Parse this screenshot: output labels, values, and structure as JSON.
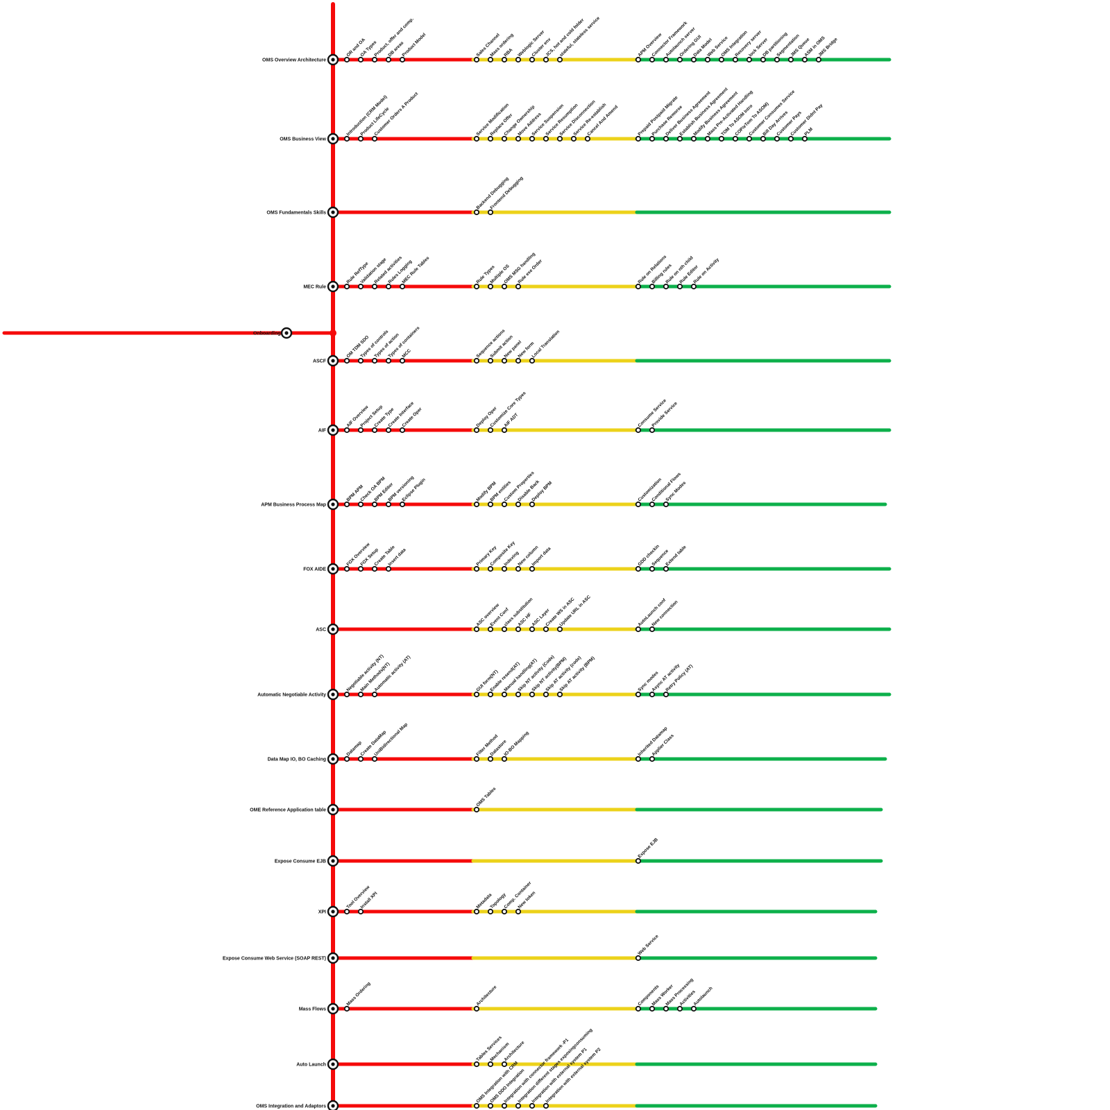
{
  "palette": {
    "red": "#f50a0a",
    "yellow": "#ecd21a",
    "green": "#0db04b",
    "station_stroke": "#111111",
    "station_fill": "#ffffff"
  },
  "onboarding": {
    "label": "Onboarding"
  },
  "rows": [
    {
      "label": "OMS Overview  Architecture",
      "red": [
        "OR and OA",
        "OA Types",
        "Product, offer and comp.",
        "DB areas",
        "Product Model"
      ],
      "yellow": [
        "Sales Channel",
        "Mass ordering",
        "RBA",
        "Weblogic Server",
        "Cluster env",
        "JCS, hot and cold folder",
        "stateful, stateless service"
      ],
      "green": [
        "APM Overview",
        "Connector Framework",
        "Autolaunch server",
        "Ordering GUI",
        "Data Model",
        "Web Service",
        "OMS Integration",
        "Recovery server",
        "lock Server",
        "DB partitioning",
        "Segmentation",
        "JMS Queue",
        "ASM in OMS",
        "JMS Bridge"
      ]
    },
    {
      "label": "OMS Business View",
      "red": [
        "Introduction (CRM Model)",
        "Product LifeCycle",
        "Customer Orders A Product"
      ],
      "yellow": [
        "Service Modification",
        "Replace Offer",
        "Change Ownership",
        "Move Address",
        "Service Suspension",
        "Service Resumption",
        "Service Disconnection",
        "Service Re-establish",
        "Cancel And Amend"
      ],
      "green": [
        "Prepaid Postpaid Migrate",
        "Purchase Remorse",
        "Deliver Business Agreement",
        "Establish Business Agreement",
        "Modify Business Agreement",
        "Mass Pre-Activated  Handling",
        "TOM To ASOM Intro",
        "COP/eTom To ASOM)",
        "Customer Consumes Service",
        "Bill Day Arrives",
        "Customer Pays",
        "Customer Didnt Pay",
        "PLM"
      ]
    },
    {
      "label": "OMS Fundamentals Skills",
      "red": [],
      "yellow": [
        "Backend Debugging",
        "Frontend Debugging"
      ],
      "green": []
    },
    {
      "label": "MEC Rule",
      "red": [
        "Rule RefType",
        "Validation stage",
        "Related activities",
        "Rules Logging",
        "MEC Rule Tables"
      ],
      "yellow": [
        "Rule Types",
        "Multiple OS",
        "OMS MSG handling",
        "Rule exe Order"
      ],
      "green": [
        "Rule on Relations",
        "Billing rules",
        "Rule on nth child",
        "Rule Editor",
        "Rule on Activity"
      ]
    },
    {
      "label": "ASCF",
      "red": [
        "OM TDM SDO",
        "Types of controls",
        "Types of action",
        "Types of containers",
        "MCC"
      ],
      "yellow": [
        "Sequence actions",
        "Submit action",
        "New panel",
        "New form",
        "Local Translation"
      ],
      "green": []
    },
    {
      "label": "AIF",
      "red": [
        "AIF Overview",
        "Project Setup",
        "Create Type",
        "Create Interface",
        "Create Oper"
      ],
      "yellow": [
        "Deploy Oper",
        "Customize Core Types",
        "AIF ADT"
      ],
      "green": [
        "Consume Service",
        "Provide Service"
      ]
    },
    {
      "label": "APM  Business Process Map",
      "red": [
        "BPM  APM",
        "Check OA BPM",
        "BPM Editor",
        "BPM versioning",
        "Eclipse Plugin"
      ],
      "yellow": [
        "Modify BPM",
        "BPM entities",
        "Custom Properties",
        "Disable Back",
        "Deploy BPM"
      ],
      "green": [
        "Customization",
        "Conditional Flows",
        "Sync Modes"
      ]
    },
    {
      "label": "FOX AIDE",
      "red": [
        "FOX Overview",
        "FOX Setup",
        "Create Table",
        "Insert data"
      ],
      "yellow": [
        "Primary Key",
        "Composite Key",
        "Indexing",
        "New column",
        "Import data"
      ],
      "green": [
        "GDD checkin",
        "Sequence",
        "Extend table"
      ]
    },
    {
      "label": "ASC",
      "red": [],
      "yellow": [
        "ASC overview",
        "Event Conf",
        "class substitution",
        "ASC HF",
        "ASC Layer",
        "Create WS in ASC",
        "Update URL in ASC"
      ],
      "green": [
        "AutoLaunch conf",
        "New connection"
      ]
    },
    {
      "label": "Automatic  Negotiable Activity",
      "red": [
        "Negotiable activity (NT)",
        "Main Methods(NT)",
        "Automatic activity (AT)"
      ],
      "yellow": [
        "GUI form(NT)",
        "Enable resend(AT)",
        "Manual handling(AT)",
        "Skip NT activity (Code)",
        "Skip NT activity(BPM)",
        "Skip AT activity (code)",
        "Skip AT activity (BPM)"
      ],
      "green": [
        "Sync modes",
        "Async AT activity",
        "Retry Policy (AT)"
      ]
    },
    {
      "label": "Data Map  IO, BO Caching",
      "red": [
        "Datamap",
        "Create DataMap",
        "UniBidirectional Map"
      ],
      "yellow": [
        "Filter Method",
        "Datastore",
        "IO-BO Mapping"
      ],
      "green": [
        "Inherited Datamap",
        "Applier Class"
      ]
    },
    {
      "label": "OME Reference  Application table",
      "red": [],
      "yellow": [
        "OMS Tables"
      ],
      "green": []
    },
    {
      "label": "Expose Consume EJB",
      "red": [],
      "yellow": [],
      "green": [
        "Expose EJB"
      ]
    },
    {
      "label": "XPI",
      "red": [
        "Tool Overview",
        "Install XPI"
      ],
      "yellow": [
        "Metadata",
        "Topology",
        "Comp. Container",
        "New token"
      ],
      "green": []
    },
    {
      "label": "Expose Consume Web Service (SOAP REST)",
      "red": [],
      "yellow": [],
      "green": [
        "Web Service"
      ]
    },
    {
      "label": "Mass Flows",
      "red": [
        "Mass Ordering"
      ],
      "yellow": [
        "Architecture"
      ],
      "green": [
        "Components",
        "Mass Worker",
        "Mass Processing",
        "Activities",
        "Autolaunch"
      ]
    },
    {
      "label": "Auto Launch",
      "red": [],
      "yellow": [
        "Tables  Services",
        "Mechanism",
        "Architecture"
      ],
      "green": []
    },
    {
      "label": "OMS Integration and Adaptors",
      "red": [],
      "yellow": [
        "OMS Integration with CRM",
        "OMS DDO Integration",
        "Integration with connector framework -P1",
        "Integration different stages exposingconsuming",
        "Integration with external system P1",
        "Integration with external system P2"
      ],
      "green": []
    }
  ]
}
